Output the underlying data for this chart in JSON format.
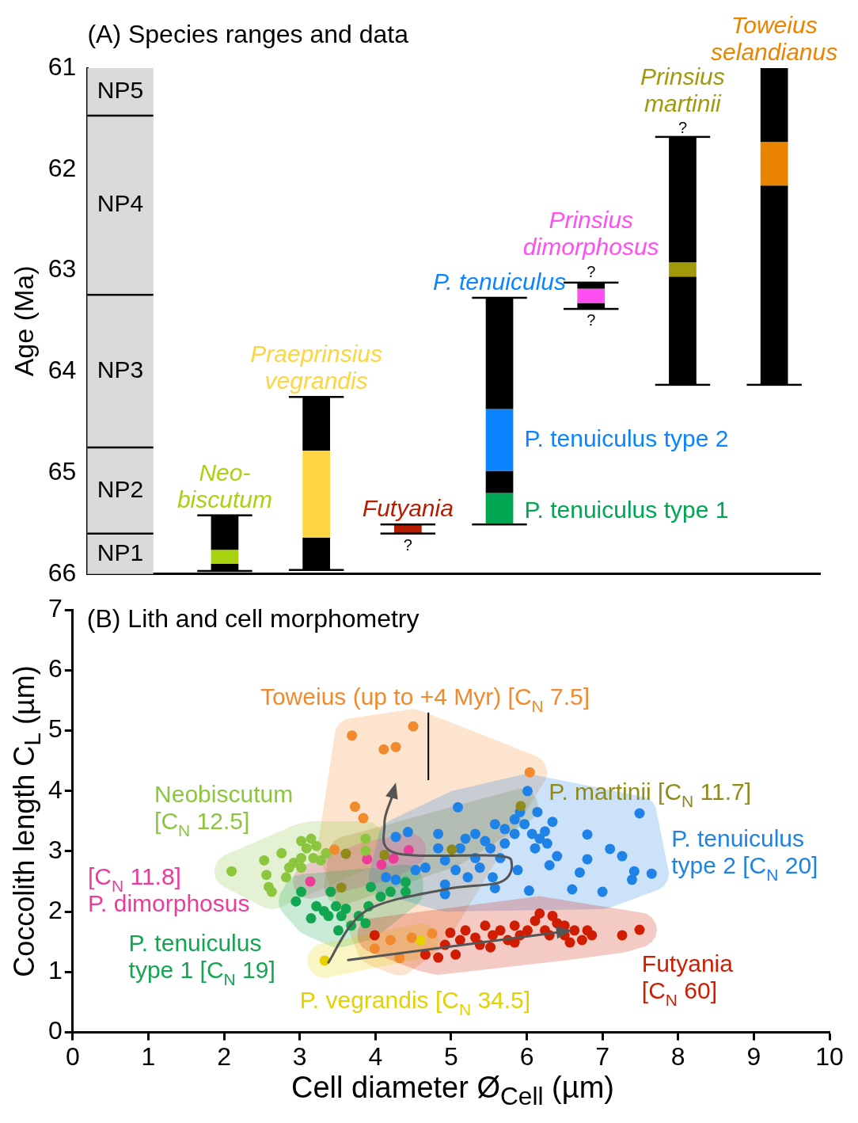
{
  "chart_data": [
    {
      "type": "bar",
      "title": "(A) Species ranges and data",
      "ylabel": "Age (Ma)",
      "categories": [
        null,
        "Neo-\nbiscutum",
        "Praeprinsius\nvegrandis",
        "Futyania",
        "P. tenuiculus",
        "Prinsius\ndimorphosus",
        "Prinsius\nmartinii",
        "Toweius\nselandianus"
      ],
      "series": [
        {
          "color": "#000000",
          "base": [
            null,
            65.42,
            64.25,
            null,
            63.27,
            63.12,
            61.68,
            61.0
          ],
          "values": [
            null,
            0.34,
            0.53,
            null,
            1.1,
            0.06,
            1.24,
            0.73
          ]
        },
        {
          "colors": [
            "#000000",
            "#a8d10f",
            "#fdd441",
            "#b81c00",
            "#0a84ff",
            "#ff4ff0",
            "#a09a0a",
            "#ea8400"
          ],
          "base": [
            null,
            65.76,
            64.78,
            65.51,
            64.37,
            63.18,
            62.92,
            61.73
          ],
          "values": [
            null,
            0.14,
            0.86,
            0.09,
            0.61,
            0.14,
            0.14,
            0.43
          ]
        },
        {
          "color": "#000000",
          "base": [
            null,
            65.9,
            65.64,
            null,
            64.98,
            63.32,
            63.06,
            62.16
          ],
          "values": [
            null,
            0.07,
            0.32,
            null,
            0.22,
            0.06,
            1.07,
            1.97
          ]
        },
        {
          "color": "#00a651",
          "base": [
            null,
            null,
            null,
            null,
            65.2,
            null,
            null,
            null
          ],
          "values": [
            null,
            null,
            null,
            null,
            0.31,
            null,
            null,
            null
          ]
        }
      ],
      "ref_lines": [
        {
          "axis": "y",
          "value": 61.47,
          "color": "#000000"
        },
        {
          "axis": "y",
          "value": 63.24,
          "color": "#000000"
        },
        {
          "axis": "y",
          "value": 64.75,
          "color": "#000000"
        },
        {
          "axis": "y",
          "value": 65.6,
          "color": "#000000"
        }
      ],
      "ylim": [
        66,
        61
      ],
      "yticks": [
        61,
        62,
        63,
        64,
        65,
        66
      ],
      "tick_labels": "y",
      "bands": [
        {
          "axis": "y",
          "from": 61,
          "to": 61.47,
          "label": "NP5",
          "color": "#d9d9d9"
        },
        {
          "axis": "y",
          "from": 61.47,
          "to": 63.24,
          "label": "NP4",
          "color": "#d9d9d9"
        },
        {
          "axis": "y",
          "from": 63.24,
          "to": 64.75,
          "label": "NP3",
          "color": "#d9d9d9"
        },
        {
          "axis": "y",
          "from": 64.75,
          "to": 65.6,
          "label": "NP2",
          "color": "#d9d9d9"
        },
        {
          "axis": "y",
          "from": 65.6,
          "to": 66,
          "label": "NP1",
          "color": "#d9d9d9"
        }
      ],
      "annotations": [
        "?",
        "?",
        "?",
        "?",
        "P. tenuiculus type 2",
        "P. tenuiculus type 1"
      ]
    },
    {
      "type": "scatter",
      "title": "(B) Lith and cell morphometry",
      "xlabel": "Cell diameter Ø$_{Cell}$ (µm)",
      "ylabel": "Coccolith length C$_{L}$ (µm)",
      "xlim": [
        0,
        10
      ],
      "xticks": [
        0,
        1,
        2,
        3,
        4,
        5,
        6,
        7,
        8,
        9,
        10
      ],
      "ylim": [
        0,
        7
      ],
      "yticks": [
        0,
        1,
        2,
        3,
        4,
        5,
        6,
        7
      ],
      "marker": "circle",
      "series": [
        {
          "name": "Toweius (up to +4 Myr) [C$_{N}$ 7.5]",
          "color": "#f08a2c",
          "x": [
            3.69,
            4.11,
            4.27,
            4.5,
            6.04,
            3.73,
            3.84,
            3.46,
            3.99,
            4.2,
            4.32,
            4.48,
            4.75
          ],
          "values": [
            4.92,
            4.69,
            4.73,
            5.07,
            4.31,
            3.74,
            3.55,
            3.03,
            1.39,
            1.53,
            1.23,
            1.57,
            1.64
          ]
        },
        {
          "name": "Neobiscutum\n[C$_{N}$ 12.5]",
          "color": "#8cc63f",
          "x": [
            2.1,
            2.56,
            2.59,
            2.63,
            2.76,
            2.86,
            3.02,
            3.02,
            3.09,
            3.18,
            3.22,
            3.28,
            3.02,
            2.82,
            3.35,
            3.87,
            3.87,
            3.15,
            2.92,
            2.53
          ],
          "values": [
            2.67,
            2.61,
            2.41,
            2.33,
            2.97,
            2.73,
            3.17,
            2.89,
            3.05,
            2.89,
            3.09,
            2.85,
            2.73,
            2.57,
            2.97,
            3.21,
            3.01,
            3.21,
            2.81,
            2.85
          ]
        },
        {
          "name": "P. martinii [C$_{N}$ 11.7]",
          "color": "#8f8a1a",
          "x": [
            3.61,
            3.55,
            5.92,
            5.01,
            4.12
          ],
          "values": [
            2.96,
            2.4,
            3.75,
            3.03,
            2.94
          ]
        },
        {
          "name": "P. tenuiculus\ntype 2 [C$_{N}$ 20]",
          "color": "#1f82e6",
          "x": [
            5.09,
            6.01,
            7.49,
            4.27,
            4.43,
            6.8,
            7.1,
            7.26,
            7.42,
            7.65,
            7.39,
            6.8,
            6.7,
            6.6,
            7.0,
            6.4,
            6.3,
            6.03,
            6.34,
            5.58,
            4.92,
            4.92,
            5.06,
            5.22,
            5.38,
            5.55,
            5.88,
            6.11,
            6.17,
            5.84,
            5.71,
            5.58,
            5.84,
            5.97,
            5.71,
            5.52,
            5.32,
            5.19,
            5.12,
            4.83,
            4.83,
            5.32,
            5.65,
            6.24,
            6.14,
            5.91,
            4.53,
            4.27,
            4.14,
            4.66,
            4.92,
            5.45,
            6.07,
            6.27
          ],
          "values": [
            3.73,
            4.0,
            3.63,
            3.24,
            3.32,
            3.28,
            3.04,
            2.92,
            2.67,
            2.63,
            2.53,
            2.87,
            2.65,
            2.37,
            2.33,
            2.92,
            2.77,
            2.35,
            3.49,
            2.39,
            2.45,
            2.29,
            2.69,
            2.57,
            2.73,
            2.57,
            2.69,
            3.05,
            3.21,
            3.29,
            3.37,
            3.45,
            3.53,
            3.45,
            3.13,
            3.05,
            3.29,
            3.21,
            3.05,
            3.29,
            3.05,
            2.89,
            2.89,
            3.33,
            3.65,
            3.65,
            2.69,
            2.53,
            2.57,
            2.73,
            2.85,
            3.17,
            3.29,
            3.13
          ]
        },
        {
          "name": "[C$_{N}$ 11.8]\nP. dimorphosus",
          "color": "#ec3c9a",
          "x": [
            3.14,
            3.89,
            4.08,
            4.24,
            4.44
          ],
          "values": [
            2.5,
            2.87,
            2.78,
            2.88,
            3.02
          ]
        },
        {
          "name": "P. tenuiculus\ntype 1 [C$_{N}$ 19]",
          "color": "#12a651",
          "x": [
            2.95,
            3.02,
            3.15,
            3.22,
            3.32,
            3.38,
            3.48,
            3.55,
            3.61,
            3.51,
            3.78,
            3.91,
            4.07,
            4.2,
            4.4,
            4.4,
            3.41,
            3.94,
            3.87,
            3.68
          ],
          "values": [
            2.17,
            2.33,
            1.89,
            2.09,
            2.01,
            1.93,
            2.09,
            1.93,
            2.05,
            1.69,
            1.93,
            2.09,
            2.25,
            2.33,
            2.49,
            2.33,
            2.33,
            2.41,
            1.81,
            1.77
          ]
        },
        {
          "name": "P. vegrandis [C$_{N}$ 34.5]",
          "color": "#e3d200",
          "x": [
            3.33,
            4.6
          ],
          "values": [
            1.19,
            1.52
          ]
        },
        {
          "name": "Futyania\n[C$_{N}$ 60]",
          "color": "#d01c00",
          "x": [
            3.99,
            4.83,
            4.92,
            4.99,
            5.12,
            5.19,
            5.32,
            5.38,
            5.45,
            5.55,
            5.65,
            5.75,
            5.84,
            5.91,
            6.01,
            6.11,
            6.17,
            6.24,
            6.3,
            6.4,
            6.5,
            6.57,
            6.63,
            6.73,
            6.8,
            6.86,
            7.26,
            7.49,
            5.84,
            5.52,
            5.06,
            4.66,
            6.34,
            6.5
          ],
          "values": [
            1.61,
            1.24,
            1.45,
            1.65,
            1.53,
            1.69,
            1.57,
            1.45,
            1.77,
            1.61,
            1.69,
            1.53,
            1.77,
            1.61,
            1.69,
            1.85,
            1.97,
            1.69,
            1.61,
            1.81,
            1.61,
            1.49,
            1.69,
            1.53,
            1.69,
            1.61,
            1.61,
            1.7,
            1.49,
            1.41,
            1.29,
            1.29,
            1.93,
            1.77
          ]
        }
      ]
    }
  ]
}
